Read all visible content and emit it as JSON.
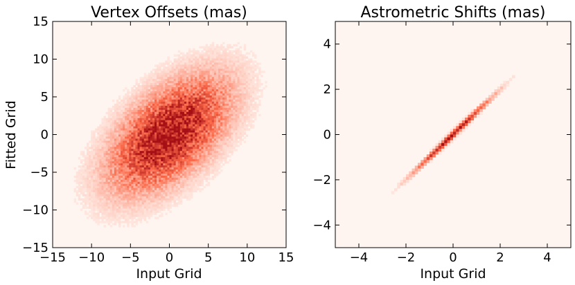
{
  "chart_data": [
    {
      "type": "heatmap",
      "title": "Vertex Offsets (mas)",
      "xlabel": "Input Grid",
      "ylabel": "Fitted Grid",
      "xlim": [
        -15,
        15
      ],
      "ylim": [
        -15,
        15
      ],
      "xticks": [
        "−15",
        "−10",
        "−5",
        "0",
        "5",
        "10",
        "15"
      ],
      "yticks": [
        "15",
        "10",
        "5",
        "0",
        "−5",
        "−10",
        "−15"
      ],
      "colormap": "Reds",
      "colors": {
        "low": "#fff5f0",
        "mid": "#fb6a4a",
        "high": "#a50f15"
      },
      "distribution": {
        "center": [
          0,
          0
        ],
        "sigma_x": 4.5,
        "sigma_y": 4.5,
        "correlation": 0.55
      },
      "grid": false
    },
    {
      "type": "heatmap",
      "title": "Astrometric Shifts (mas)",
      "xlabel": "Input Grid",
      "ylabel": "",
      "xlim": [
        -5,
        5
      ],
      "ylim": [
        -5,
        5
      ],
      "xticks": [
        "−4",
        "−2",
        "0",
        "2",
        "4"
      ],
      "yticks": [
        "4",
        "2",
        "0",
        "−2",
        "−4"
      ],
      "colormap": "Reds",
      "colors": {
        "low": "#fff5f0",
        "mid": "#fb6a4a",
        "high": "#a50f15"
      },
      "distribution": {
        "center": [
          0,
          0
        ],
        "sigma_x": 1.0,
        "sigma_y": 1.0,
        "correlation": 0.995
      },
      "grid": false
    }
  ]
}
